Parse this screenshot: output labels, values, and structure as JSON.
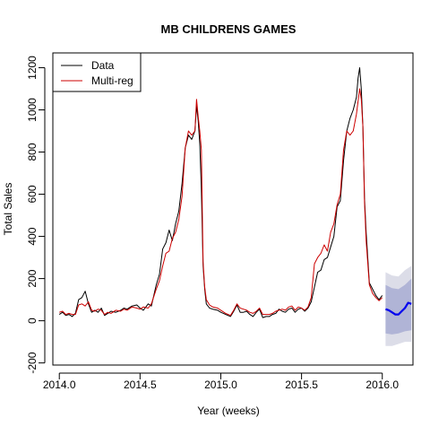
{
  "chart_data": {
    "type": "line",
    "title": "MB CHILDRENS GAMES",
    "xlabel": "Year (weeks)",
    "ylabel": "Total Sales",
    "xlim": [
      2013.96,
      2016.19
    ],
    "ylim": [
      -210,
      1270
    ],
    "x_ticks": [
      2014.0,
      2014.5,
      2015.0,
      2015.5,
      2016.0
    ],
    "x_tick_labels": [
      "2014.0",
      "2014.5",
      "2015.0",
      "2015.5",
      "2016.0"
    ],
    "y_ticks": [
      -200,
      0,
      200,
      400,
      600,
      800,
      1000,
      1200
    ],
    "y_tick_labels": [
      "-200",
      "0",
      "200",
      "400",
      "600",
      "800",
      "1000",
      "1200"
    ],
    "grid": false,
    "legend": {
      "placement": "top-left",
      "entries": [
        {
          "label": "Data",
          "color": "#000000"
        },
        {
          "label": "Multi-reg",
          "color": "#cc0000"
        }
      ]
    },
    "series": [
      {
        "name": "Data",
        "color": "#000000",
        "x": [
          2014.0,
          2014.02,
          2014.04,
          2014.06,
          2014.08,
          2014.1,
          2014.12,
          2014.14,
          2014.16,
          2014.18,
          2014.2,
          2014.22,
          2014.24,
          2014.26,
          2014.28,
          2014.3,
          2014.32,
          2014.35,
          2014.38,
          2014.4,
          2014.42,
          2014.45,
          2014.48,
          2014.5,
          2014.52,
          2014.55,
          2014.57,
          2014.6,
          2014.62,
          2014.64,
          2014.66,
          2014.68,
          2014.7,
          2014.72,
          2014.74,
          2014.76,
          2014.78,
          2014.8,
          2014.82,
          2014.84,
          2014.85,
          2014.86,
          2014.87,
          2014.88,
          2014.89,
          2014.9,
          2014.91,
          2014.93,
          2014.95,
          2014.98,
          2015.0,
          2015.03,
          2015.06,
          2015.08,
          2015.1,
          2015.12,
          2015.14,
          2015.16,
          2015.18,
          2015.2,
          2015.22,
          2015.24,
          2015.26,
          2015.28,
          2015.3,
          2015.32,
          2015.34,
          2015.36,
          2015.38,
          2015.4,
          2015.42,
          2015.44,
          2015.46,
          2015.48,
          2015.5,
          2015.52,
          2015.54,
          2015.56,
          2015.58,
          2015.6,
          2015.62,
          2015.64,
          2015.66,
          2015.68,
          2015.7,
          2015.72,
          2015.74,
          2015.76,
          2015.78,
          2015.8,
          2015.82,
          2015.84,
          2015.85,
          2015.86,
          2015.87,
          2015.88,
          2015.89,
          2015.9,
          2015.92,
          2015.94,
          2015.96,
          2015.98,
          2016.0
        ],
        "y": [
          30,
          40,
          25,
          30,
          20,
          35,
          100,
          110,
          140,
          80,
          40,
          50,
          40,
          60,
          25,
          35,
          45,
          40,
          50,
          60,
          55,
          70,
          75,
          60,
          50,
          80,
          70,
          170,
          220,
          340,
          370,
          430,
          380,
          460,
          520,
          650,
          820,
          880,
          860,
          900,
          1020,
          950,
          840,
          620,
          260,
          150,
          80,
          60,
          55,
          50,
          40,
          30,
          20,
          45,
          75,
          40,
          40,
          45,
          30,
          20,
          40,
          55,
          15,
          20,
          20,
          30,
          35,
          55,
          45,
          40,
          55,
          60,
          40,
          55,
          60,
          45,
          60,
          90,
          160,
          230,
          240,
          290,
          300,
          350,
          400,
          540,
          570,
          760,
          900,
          960,
          1000,
          1060,
          1150,
          1200,
          1100,
          920,
          580,
          420,
          180,
          150,
          120,
          100,
          120
        ]
      },
      {
        "name": "Multi-reg",
        "color": "#cc0000",
        "x": [
          2014.0,
          2014.02,
          2014.04,
          2014.06,
          2014.08,
          2014.1,
          2014.12,
          2014.14,
          2014.16,
          2014.18,
          2014.2,
          2014.22,
          2014.24,
          2014.26,
          2014.28,
          2014.3,
          2014.32,
          2014.35,
          2014.38,
          2014.4,
          2014.42,
          2014.45,
          2014.48,
          2014.5,
          2014.52,
          2014.55,
          2014.57,
          2014.6,
          2014.62,
          2014.64,
          2014.66,
          2014.68,
          2014.7,
          2014.72,
          2014.74,
          2014.76,
          2014.78,
          2014.8,
          2014.82,
          2014.84,
          2014.85,
          2014.86,
          2014.87,
          2014.88,
          2014.89,
          2014.9,
          2014.91,
          2014.93,
          2014.95,
          2014.98,
          2015.0,
          2015.03,
          2015.06,
          2015.08,
          2015.1,
          2015.12,
          2015.14,
          2015.16,
          2015.18,
          2015.2,
          2015.22,
          2015.24,
          2015.26,
          2015.28,
          2015.3,
          2015.32,
          2015.34,
          2015.36,
          2015.38,
          2015.4,
          2015.42,
          2015.44,
          2015.46,
          2015.48,
          2015.5,
          2015.52,
          2015.54,
          2015.56,
          2015.58,
          2015.6,
          2015.62,
          2015.64,
          2015.66,
          2015.68,
          2015.7,
          2015.72,
          2015.74,
          2015.76,
          2015.78,
          2015.8,
          2015.82,
          2015.84,
          2015.85,
          2015.86,
          2015.87,
          2015.88,
          2015.89,
          2015.9,
          2015.92,
          2015.94,
          2015.96,
          2015.98,
          2016.0
        ],
        "y": [
          40,
          45,
          30,
          35,
          30,
          30,
          75,
          80,
          70,
          90,
          50,
          45,
          55,
          50,
          30,
          40,
          35,
          50,
          45,
          55,
          50,
          65,
          60,
          55,
          65,
          60,
          80,
          150,
          190,
          260,
          320,
          330,
          390,
          420,
          480,
          590,
          820,
          900,
          880,
          900,
          1050,
          970,
          900,
          810,
          280,
          160,
          100,
          75,
          65,
          60,
          50,
          35,
          25,
          50,
          80,
          60,
          55,
          50,
          40,
          35,
          45,
          60,
          30,
          30,
          30,
          35,
          45,
          50,
          55,
          50,
          65,
          70,
          50,
          65,
          60,
          50,
          65,
          110,
          270,
          300,
          320,
          360,
          330,
          420,
          460,
          550,
          600,
          810,
          900,
          880,
          900,
          980,
          1040,
          1100,
          1050,
          920,
          560,
          380,
          170,
          130,
          110,
          95,
          110
        ]
      },
      {
        "name": "Forecast",
        "color": "#0000ee",
        "x": [
          2016.02,
          2016.04,
          2016.06,
          2016.08,
          2016.1,
          2016.12,
          2016.14,
          2016.16,
          2016.18
        ],
        "y": [
          55,
          50,
          40,
          30,
          30,
          45,
          60,
          85,
          80
        ]
      }
    ],
    "forecast_band_80": {
      "color": "#b0b4d6",
      "x": [
        2016.02,
        2016.06,
        2016.1,
        2016.14,
        2016.18
      ],
      "lower": [
        -60,
        -65,
        -60,
        -50,
        -45
      ],
      "upper": [
        170,
        155,
        150,
        170,
        200
      ]
    },
    "forecast_band_95": {
      "color": "#dcdde8",
      "x": [
        2016.02,
        2016.06,
        2016.1,
        2016.14,
        2016.18
      ],
      "lower": [
        -120,
        -120,
        -110,
        -100,
        -100
      ],
      "upper": [
        230,
        215,
        210,
        240,
        260
      ]
    }
  }
}
